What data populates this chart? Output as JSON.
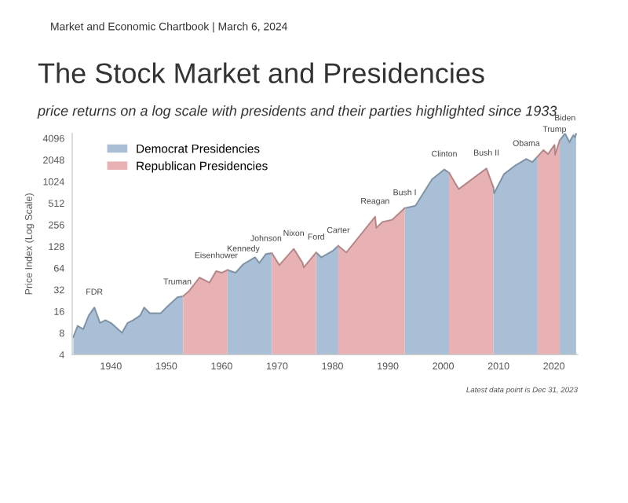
{
  "chart_data": {
    "type": "area",
    "title": "The Stock Market and Presidencies",
    "subtitle": "price returns on a log scale with presidents and their parties highlighted since 1933",
    "ylabel": "Price Index (Log Scale)",
    "log": true,
    "xlim": [
      1933,
      2024.3
    ],
    "xticks": [
      1940,
      1950,
      1960,
      1970,
      1980,
      1990,
      2000,
      2010,
      2020
    ],
    "ylim": [
      4,
      4800
    ],
    "yticks": [
      4,
      8,
      16,
      32,
      64,
      128,
      256,
      512,
      1024,
      2048,
      4096
    ],
    "grid": false,
    "legend": "top left",
    "series": [
      {
        "name": "Democrat Presidencies",
        "color": "#a9bfd6",
        "x": [
          1933.2,
          1934,
          1935,
          1936,
          1937,
          1938,
          1939,
          1940,
          1942,
          1943,
          1944,
          1945.3,
          1946,
          1947,
          1949,
          1950,
          1952,
          1953.05,
          1953.06,
          1961.04,
          1961.05,
          1962.5,
          1963.9,
          1966,
          1966.8,
          1968,
          1969.05,
          1969.06,
          1977.04,
          1977.05,
          1978,
          1980,
          1981.05,
          1981.06,
          1993.04,
          1993.05,
          1995,
          1998,
          2000.2,
          2001.05,
          2001.06,
          2009.04,
          2009.05,
          2009.2,
          2011,
          2013,
          2015,
          2016.1,
          2017.05,
          2017.06,
          2021.04,
          2021.05,
          2022,
          2022.8,
          2023.5,
          2023.8,
          2024.0
        ],
        "values": [
          7,
          10,
          9,
          14,
          18,
          11,
          12,
          11,
          8,
          11,
          12,
          14,
          18,
          15,
          15,
          18,
          25,
          26,
          null,
          null,
          60,
          55,
          72,
          90,
          75,
          100,
          103,
          null,
          null,
          105,
          90,
          110,
          130,
          null,
          null,
          435,
          470,
          1100,
          1500,
          1350,
          null,
          null,
          850,
          700,
          1300,
          1700,
          2100,
          1900,
          2270,
          null,
          null,
          3800,
          4750,
          3600,
          4500,
          4200,
          4770
        ]
      },
      {
        "name": "Republican Presidencies",
        "color": "#e8b2b4",
        "x": [
          1953.05,
          1954,
          1956,
          1957.8,
          1959,
          1960,
          1961.05,
          1961.06,
          1969.04,
          1969.05,
          1970.4,
          1973,
          1974.6,
          1974.8,
          1977.05,
          1977.06,
          1981.04,
          1981.05,
          1982.5,
          1987.7,
          1987.9,
          1989.05,
          1990.8,
          1993.05,
          1993.06,
          2001.04,
          2001.05,
          2002.8,
          2007.8,
          2009.05,
          2009.06,
          2017.04,
          2017.05,
          2018.1,
          2018.95,
          2020.1,
          2020.2,
          2021.05
        ],
        "values": [
          26,
          30,
          47,
          40,
          58,
          55,
          60,
          null,
          null,
          103,
          70,
          118,
          75,
          65,
          105,
          null,
          null,
          130,
          105,
          330,
          230,
          280,
          300,
          435,
          null,
          null,
          1350,
          800,
          1550,
          850,
          null,
          null,
          2270,
          2800,
          2450,
          3300,
          2400,
          3800
        ]
      }
    ],
    "annotations": [
      "Market and Economic Chartbook | March 6, 2024",
      "Latest data point is Dec 31, 2023",
      {
        "text": "FDR",
        "x": 1937,
        "y": 18
      },
      {
        "text": "Truman",
        "x": 1952,
        "y": 25
      },
      {
        "text": "Eisenhower",
        "x": 1959,
        "y": 58
      },
      {
        "text": "Kennedy",
        "x": 1963.9,
        "y": 72
      },
      {
        "text": "Johnson",
        "x": 1968,
        "y": 100
      },
      {
        "text": "Nixon",
        "x": 1973,
        "y": 118
      },
      {
        "text": "Ford",
        "x": 1977.05,
        "y": 105
      },
      {
        "text": "Carter",
        "x": 1981.05,
        "y": 130
      },
      {
        "text": "Reagan",
        "x": 1987.7,
        "y": 330
      },
      {
        "text": "Bush I",
        "x": 1993.05,
        "y": 435
      },
      {
        "text": "Clinton",
        "x": 2000.2,
        "y": 1500
      },
      {
        "text": "Bush II",
        "x": 2007.8,
        "y": 1550
      },
      {
        "text": "Obama",
        "x": 2015,
        "y": 2100
      },
      {
        "text": "Trump",
        "x": 2020.1,
        "y": 3300
      },
      {
        "text": "Biden",
        "x": 2022,
        "y": 4750
      }
    ]
  }
}
